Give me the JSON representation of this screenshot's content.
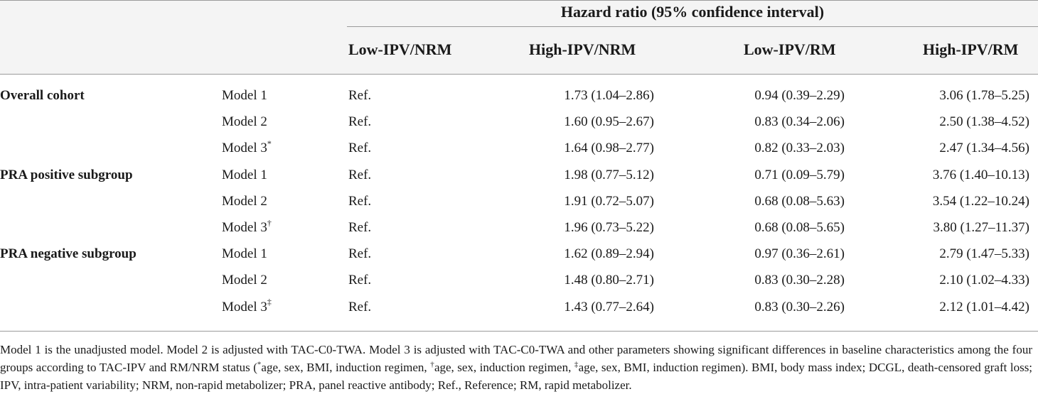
{
  "table": {
    "group_header": "Hazard ratio (95% confidence interval)",
    "columns": [
      "Low-IPV/NRM",
      "High-IPV/NRM",
      "Low-IPV/RM",
      "High-IPV/RM"
    ],
    "rows": [
      {
        "group": "Overall cohort",
        "model": "Model 1",
        "sup": "",
        "c1": "Ref.",
        "c2": "1.73 (1.04–2.86)",
        "c3": "0.94 (0.39–2.29)",
        "c4": "3.06 (1.78–5.25)"
      },
      {
        "group": "",
        "model": "Model 2",
        "sup": "",
        "c1": "Ref.",
        "c2": "1.60 (0.95–2.67)",
        "c3": "0.83 (0.34–2.06)",
        "c4": "2.50 (1.38–4.52)"
      },
      {
        "group": "",
        "model": "Model 3",
        "sup": "*",
        "c1": "Ref.",
        "c2": "1.64 (0.98–2.77)",
        "c3": "0.82 (0.33–2.03)",
        "c4": "2.47 (1.34–4.56)"
      },
      {
        "group": "PRA positive subgroup",
        "model": "Model 1",
        "sup": "",
        "c1": "Ref.",
        "c2": "1.98 (0.77–5.12)",
        "c3": "0.71 (0.09–5.79)",
        "c4": "3.76 (1.40–10.13)"
      },
      {
        "group": "",
        "model": "Model 2",
        "sup": "",
        "c1": "Ref.",
        "c2": "1.91 (0.72–5.07)",
        "c3": "0.68 (0.08–5.63)",
        "c4": "3.54 (1.22–10.24)"
      },
      {
        "group": "",
        "model": "Model 3",
        "sup": "†",
        "c1": "Ref.",
        "c2": "1.96 (0.73–5.22)",
        "c3": "0.68 (0.08–5.65)",
        "c4": "3.80 (1.27–11.37)"
      },
      {
        "group": "PRA negative subgroup",
        "model": "Model 1",
        "sup": "",
        "c1": "Ref.",
        "c2": "1.62 (0.89–2.94)",
        "c3": "0.97 (0.36–2.61)",
        "c4": "2.79 (1.47–5.33)"
      },
      {
        "group": "",
        "model": "Model 2",
        "sup": "",
        "c1": "Ref.",
        "c2": "1.48 (0.80–2.71)",
        "c3": "0.83 (0.30–2.28)",
        "c4": "2.10 (1.02–4.33)"
      },
      {
        "group": "",
        "model": "Model 3",
        "sup": "‡",
        "c1": "Ref.",
        "c2": "1.43 (0.77–2.64)",
        "c3": "0.83 (0.30–2.26)",
        "c4": "2.12 (1.01–4.42)"
      }
    ]
  },
  "footnote": {
    "p1": "Model 1 is the unadjusted model. Model 2 is adjusted with TAC-C0-TWA. Model 3 is adjusted with TAC-C0-TWA and other parameters showing significant differences in baseline characteristics among the four groups according to TAC-IPV and RM/NRM status (",
    "s1": "*",
    "p2": "age, sex, BMI, induction regimen, ",
    "s2": "†",
    "p3": "age, sex, induction regimen, ",
    "s3": "‡",
    "p4": "age, sex, BMI, induction regimen). BMI, body mass index; DCGL, death-censored graft loss; IPV, intra-patient variability; NRM, non-rapid metabolizer; PRA, panel reactive antibody; Ref., Reference; RM, rapid metabolizer."
  }
}
